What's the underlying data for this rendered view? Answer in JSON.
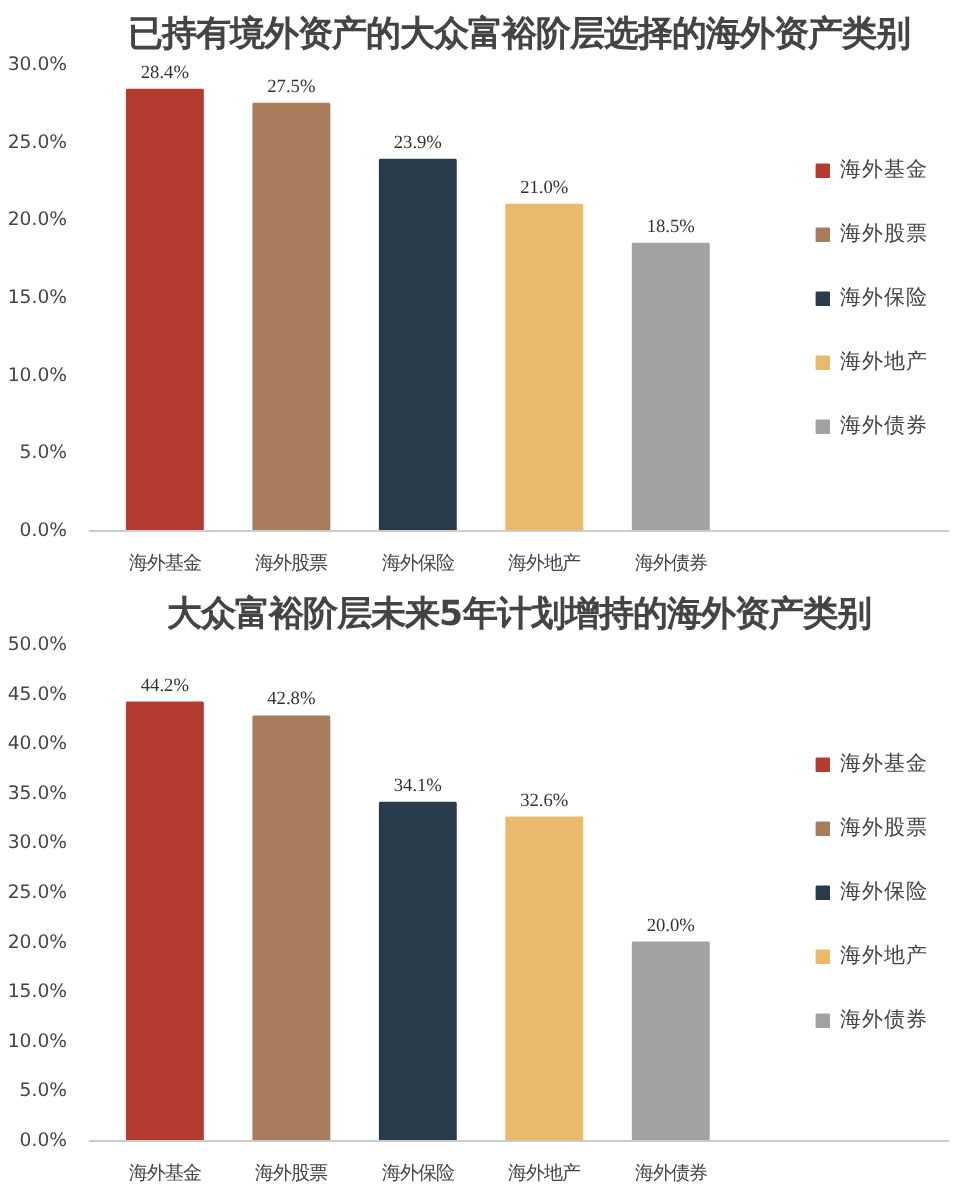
{
  "chart_data": [
    {
      "type": "bar",
      "title": "已持有境外资产的大众富裕阶层选择的海外资产类别",
      "categories": [
        "海外基金",
        "海外股票",
        "海外保险",
        "海外地产",
        "海外债券"
      ],
      "stacked": true,
      "series": [
        {
          "name": "海外基金",
          "color": "#b53a30",
          "values": [
            28.4,
            null,
            null,
            null,
            null
          ],
          "value_labels": [
            "28.4%",
            null,
            null,
            null,
            null
          ]
        },
        {
          "name": "海外股票",
          "color": "#a97c5c",
          "values": [
            null,
            27.5,
            null,
            null,
            null
          ],
          "value_labels": [
            null,
            "27.5%",
            null,
            null,
            null
          ]
        },
        {
          "name": "海外保险",
          "color": "#283c4c",
          "values": [
            null,
            null,
            23.9,
            null,
            null
          ],
          "value_labels": [
            null,
            null,
            "23.9%",
            null,
            null
          ]
        },
        {
          "name": "海外地产",
          "color": "#e9b96c",
          "values": [
            null,
            null,
            null,
            21.0,
            null
          ],
          "value_labels": [
            null,
            null,
            null,
            "21.0%",
            null
          ]
        },
        {
          "name": "海外债券",
          "color": "#a2a2a2",
          "values": [
            null,
            null,
            null,
            null,
            18.5
          ],
          "value_labels": [
            null,
            null,
            null,
            null,
            "18.5%"
          ]
        }
      ],
      "ylim": [
        0,
        30
      ],
      "yticks": [
        {
          "value": 0,
          "label": "0.0%"
        },
        {
          "value": 5,
          "label": "5.0%"
        },
        {
          "value": 10,
          "label": "10.0%"
        },
        {
          "value": 15,
          "label": "15.0%"
        },
        {
          "value": 20,
          "label": "20.0%"
        },
        {
          "value": 25,
          "label": "25.0%"
        },
        {
          "value": 30,
          "label": "30.0%"
        }
      ],
      "legend": "right",
      "grid": false
    },
    {
      "type": "bar",
      "title": "大众富裕阶层未来5年计划增持的海外资产类别",
      "categories": [
        "海外基金",
        "海外股票",
        "海外保险",
        "海外地产",
        "海外债券"
      ],
      "stacked": true,
      "series": [
        {
          "name": "海外基金",
          "color": "#b53a30",
          "values": [
            44.2,
            null,
            null,
            null,
            null
          ],
          "value_labels": [
            "44.2%",
            null,
            null,
            null,
            null
          ]
        },
        {
          "name": "海外股票",
          "color": "#a97c5c",
          "values": [
            null,
            42.8,
            null,
            null,
            null
          ],
          "value_labels": [
            null,
            "42.8%",
            null,
            null,
            null
          ]
        },
        {
          "name": "海外保险",
          "color": "#283c4c",
          "values": [
            null,
            null,
            34.1,
            null,
            null
          ],
          "value_labels": [
            null,
            null,
            "34.1%",
            null,
            null
          ]
        },
        {
          "name": "海外地产",
          "color": "#e9b96c",
          "values": [
            null,
            null,
            null,
            32.6,
            null
          ],
          "value_labels": [
            null,
            null,
            null,
            "32.6%",
            null
          ]
        },
        {
          "name": "海外债券",
          "color": "#a2a2a2",
          "values": [
            null,
            null,
            null,
            null,
            20.0
          ],
          "value_labels": [
            null,
            null,
            null,
            null,
            "20.0%"
          ]
        }
      ],
      "ylim": [
        0,
        50
      ],
      "yticks": [
        {
          "value": 0,
          "label": "0.0%"
        },
        {
          "value": 5,
          "label": "5.0%"
        },
        {
          "value": 10,
          "label": "10.0%"
        },
        {
          "value": 15,
          "label": "15.0%"
        },
        {
          "value": 20,
          "label": "20.0%"
        },
        {
          "value": 25,
          "label": "25.0%"
        },
        {
          "value": 30,
          "label": "30.0%"
        },
        {
          "value": 35,
          "label": "35.0%"
        },
        {
          "value": 40,
          "label": "40.0%"
        },
        {
          "value": 45,
          "label": "45.0%"
        },
        {
          "value": 50,
          "label": "50.0%"
        }
      ],
      "legend": "right",
      "grid": false
    }
  ]
}
